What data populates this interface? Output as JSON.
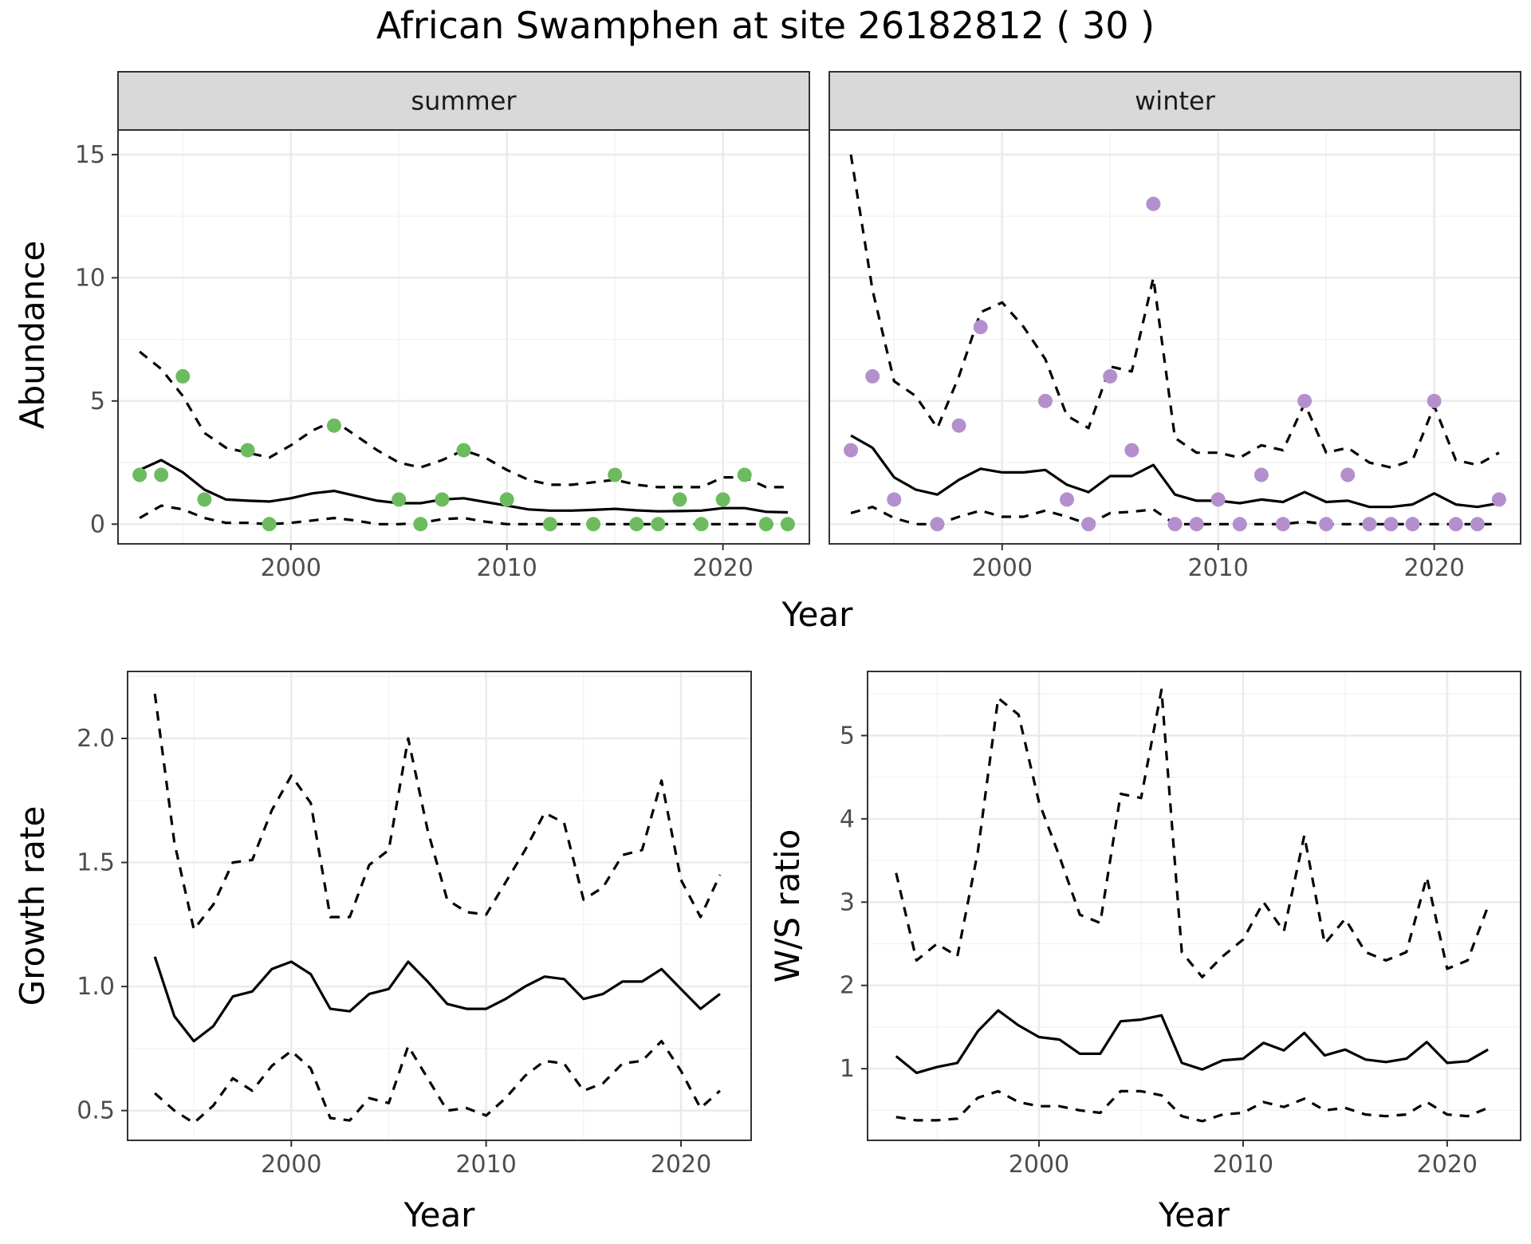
{
  "title": "African Swamphen at site 26182812 ( 30 )",
  "chart_data": [
    {
      "type": "line",
      "panel": "summer",
      "strip_label": "summer",
      "xlabel": "Year",
      "ylabel": "Abundance",
      "xlim": [
        1992,
        2024
      ],
      "ylim": [
        -0.8,
        16
      ],
      "xticks": [
        2000,
        2010,
        2020
      ],
      "yticks": [
        0,
        5,
        10,
        15
      ],
      "grid": true,
      "point_color": "#6dbb5f",
      "x": [
        1993,
        1994,
        1995,
        1996,
        1997,
        1998,
        1999,
        2000,
        2001,
        2002,
        2003,
        2004,
        2005,
        2006,
        2007,
        2008,
        2009,
        2010,
        2011,
        2012,
        2013,
        2014,
        2015,
        2016,
        2017,
        2018,
        2019,
        2020,
        2021,
        2022,
        2023
      ],
      "series": [
        {
          "role": "upper",
          "style": "dashed",
          "values": [
            7.0,
            6.3,
            5.2,
            3.7,
            3.1,
            2.9,
            2.7,
            3.2,
            3.8,
            4.2,
            3.6,
            3.0,
            2.5,
            2.3,
            2.6,
            3.0,
            2.7,
            2.2,
            1.8,
            1.6,
            1.6,
            1.7,
            1.8,
            1.6,
            1.5,
            1.5,
            1.5,
            1.9,
            1.9,
            1.5,
            1.5
          ]
        },
        {
          "role": "fit",
          "style": "solid",
          "values": [
            2.2,
            2.6,
            2.1,
            1.4,
            1.0,
            0.95,
            0.92,
            1.05,
            1.25,
            1.35,
            1.15,
            0.95,
            0.85,
            0.85,
            1.0,
            1.05,
            0.9,
            0.75,
            0.6,
            0.55,
            0.55,
            0.58,
            0.62,
            0.56,
            0.52,
            0.53,
            0.55,
            0.65,
            0.65,
            0.5,
            0.48
          ]
        },
        {
          "role": "lower",
          "style": "dashed",
          "values": [
            0.25,
            0.75,
            0.6,
            0.25,
            0.05,
            0.05,
            0.0,
            0.05,
            0.15,
            0.25,
            0.15,
            0.0,
            0.0,
            0.05,
            0.2,
            0.25,
            0.1,
            0.0,
            0.0,
            0.0,
            0.0,
            0.0,
            0.0,
            0.0,
            0.0,
            0.0,
            0.0,
            0.0,
            0.0,
            0.0,
            0.0
          ]
        }
      ],
      "points": {
        "x": [
          1993,
          1994,
          1995,
          1996,
          1998,
          1999,
          2002,
          2005,
          2006,
          2007,
          2008,
          2010,
          2012,
          2014,
          2015,
          2016,
          2017,
          2018,
          2019,
          2020,
          2021,
          2022,
          2023
        ],
        "y": [
          2,
          2,
          6,
          1,
          3,
          0,
          4,
          1,
          0,
          1,
          3,
          1,
          0,
          0,
          2,
          0,
          0,
          1,
          0,
          1,
          2,
          0,
          0
        ]
      }
    },
    {
      "type": "line",
      "panel": "winter",
      "strip_label": "winter",
      "xlabel": "Year",
      "ylabel": "Abundance",
      "xlim": [
        1992,
        2024
      ],
      "ylim": [
        -0.8,
        16
      ],
      "xticks": [
        2000,
        2010,
        2020
      ],
      "yticks": [
        0,
        5,
        10,
        15
      ],
      "grid": true,
      "point_color": "#b48fcd",
      "x": [
        1993,
        1994,
        1995,
        1996,
        1997,
        1998,
        1999,
        2000,
        2001,
        2002,
        2003,
        2004,
        2005,
        2006,
        2007,
        2008,
        2009,
        2010,
        2011,
        2012,
        2013,
        2014,
        2015,
        2016,
        2017,
        2018,
        2019,
        2020,
        2021,
        2022,
        2023
      ],
      "series": [
        {
          "role": "upper",
          "style": "dashed",
          "values": [
            15.0,
            9.5,
            5.8,
            5.2,
            3.9,
            6.0,
            8.6,
            9.0,
            8.0,
            6.7,
            4.4,
            3.9,
            6.4,
            6.2,
            10.0,
            3.5,
            2.9,
            2.9,
            2.7,
            3.2,
            3.0,
            4.9,
            2.9,
            3.1,
            2.5,
            2.3,
            2.6,
            4.8,
            2.6,
            2.4,
            2.9
          ]
        },
        {
          "role": "fit",
          "style": "solid",
          "values": [
            3.6,
            3.1,
            1.9,
            1.4,
            1.2,
            1.8,
            2.25,
            2.1,
            2.1,
            2.2,
            1.6,
            1.3,
            1.95,
            1.95,
            2.4,
            1.2,
            0.95,
            0.95,
            0.85,
            1.0,
            0.9,
            1.3,
            0.9,
            0.95,
            0.7,
            0.7,
            0.8,
            1.25,
            0.8,
            0.7,
            0.85
          ]
        },
        {
          "role": "lower",
          "style": "dashed",
          "values": [
            0.45,
            0.7,
            0.25,
            0.0,
            0.0,
            0.3,
            0.55,
            0.3,
            0.3,
            0.55,
            0.3,
            0.0,
            0.45,
            0.5,
            0.6,
            0.0,
            0.0,
            0.0,
            0.0,
            0.0,
            0.0,
            0.1,
            0.0,
            0.0,
            0.0,
            0.0,
            0.0,
            0.0,
            0.0,
            0.0,
            0.0
          ]
        }
      ],
      "points": {
        "x": [
          1993,
          1994,
          1995,
          1997,
          1998,
          1999,
          2002,
          2003,
          2004,
          2005,
          2006,
          2007,
          2008,
          2009,
          2010,
          2011,
          2012,
          2013,
          2014,
          2015,
          2016,
          2017,
          2018,
          2019,
          2020,
          2021,
          2022,
          2023
        ],
        "y": [
          3,
          6,
          1,
          0,
          4,
          8,
          5,
          1,
          0,
          6,
          3,
          13,
          0,
          0,
          1,
          0,
          2,
          0,
          5,
          0,
          2,
          0,
          0,
          0,
          5,
          0,
          0,
          1
        ]
      }
    },
    {
      "type": "line",
      "panel": "growth",
      "xlabel": "Year",
      "ylabel": "Growth rate",
      "xlim": [
        1991.6,
        2023.6
      ],
      "ylim": [
        0.38,
        2.27
      ],
      "xticks": [
        2000,
        2010,
        2020
      ],
      "yticks": [
        0.5,
        1.0,
        1.5,
        2.0
      ],
      "ytick_labels": [
        "0.5",
        "1.0",
        "1.5",
        "2.0"
      ],
      "grid": true,
      "x": [
        1993,
        1994,
        1995,
        1996,
        1997,
        1998,
        1999,
        2000,
        2001,
        2002,
        2003,
        2004,
        2005,
        2006,
        2007,
        2008,
        2009,
        2010,
        2011,
        2012,
        2013,
        2014,
        2015,
        2016,
        2017,
        2018,
        2019,
        2020,
        2021,
        2022
      ],
      "series": [
        {
          "role": "upper",
          "style": "dashed",
          "values": [
            2.18,
            1.58,
            1.23,
            1.33,
            1.5,
            1.51,
            1.71,
            1.85,
            1.74,
            1.28,
            1.28,
            1.49,
            1.55,
            2.0,
            1.63,
            1.35,
            1.3,
            1.29,
            1.42,
            1.55,
            1.7,
            1.66,
            1.35,
            1.4,
            1.53,
            1.55,
            1.83,
            1.43,
            1.28,
            1.45
          ]
        },
        {
          "role": "fit",
          "style": "solid",
          "values": [
            1.12,
            0.88,
            0.78,
            0.84,
            0.96,
            0.98,
            1.07,
            1.1,
            1.05,
            0.91,
            0.9,
            0.97,
            0.99,
            1.1,
            1.02,
            0.93,
            0.91,
            0.91,
            0.95,
            1.0,
            1.04,
            1.03,
            0.95,
            0.97,
            1.02,
            1.02,
            1.07,
            0.99,
            0.91,
            0.97
          ]
        },
        {
          "role": "lower",
          "style": "dashed",
          "values": [
            0.57,
            0.5,
            0.45,
            0.52,
            0.63,
            0.58,
            0.68,
            0.74,
            0.67,
            0.47,
            0.46,
            0.55,
            0.53,
            0.76,
            0.63,
            0.5,
            0.51,
            0.48,
            0.55,
            0.64,
            0.7,
            0.69,
            0.58,
            0.61,
            0.69,
            0.7,
            0.78,
            0.66,
            0.51,
            0.58
          ]
        }
      ]
    },
    {
      "type": "line",
      "panel": "ratio",
      "xlabel": "Year",
      "ylabel": "W/S ratio",
      "xlim": [
        1991.6,
        2023.6
      ],
      "ylim": [
        0.14,
        5.77
      ],
      "xticks": [
        2000,
        2010,
        2020
      ],
      "yticks": [
        1,
        2,
        3,
        4,
        5
      ],
      "grid": true,
      "x": [
        1993,
        1994,
        1995,
        1996,
        1997,
        1998,
        1999,
        2000,
        2001,
        2002,
        2003,
        2004,
        2005,
        2006,
        2007,
        2008,
        2009,
        2010,
        2011,
        2012,
        2013,
        2014,
        2015,
        2016,
        2017,
        2018,
        2019,
        2020,
        2021,
        2022
      ],
      "series": [
        {
          "role": "upper",
          "style": "dashed",
          "values": [
            3.35,
            2.3,
            2.5,
            2.35,
            3.6,
            5.45,
            5.25,
            4.2,
            3.55,
            2.85,
            2.75,
            4.3,
            4.25,
            5.55,
            2.4,
            2.1,
            2.35,
            2.55,
            3.0,
            2.65,
            3.8,
            2.5,
            2.8,
            2.4,
            2.3,
            2.4,
            3.3,
            2.2,
            2.3,
            2.95
          ]
        },
        {
          "role": "fit",
          "style": "solid",
          "values": [
            1.15,
            0.95,
            1.02,
            1.07,
            1.45,
            1.7,
            1.52,
            1.38,
            1.35,
            1.18,
            1.18,
            1.57,
            1.59,
            1.64,
            1.07,
            0.99,
            1.1,
            1.12,
            1.31,
            1.22,
            1.43,
            1.16,
            1.23,
            1.11,
            1.08,
            1.12,
            1.32,
            1.07,
            1.09,
            1.23
          ]
        },
        {
          "role": "lower",
          "style": "dashed",
          "values": [
            0.42,
            0.38,
            0.38,
            0.4,
            0.65,
            0.73,
            0.6,
            0.55,
            0.55,
            0.5,
            0.47,
            0.73,
            0.73,
            0.68,
            0.43,
            0.37,
            0.45,
            0.47,
            0.6,
            0.54,
            0.64,
            0.5,
            0.53,
            0.45,
            0.43,
            0.45,
            0.6,
            0.45,
            0.43,
            0.53
          ]
        }
      ]
    }
  ]
}
